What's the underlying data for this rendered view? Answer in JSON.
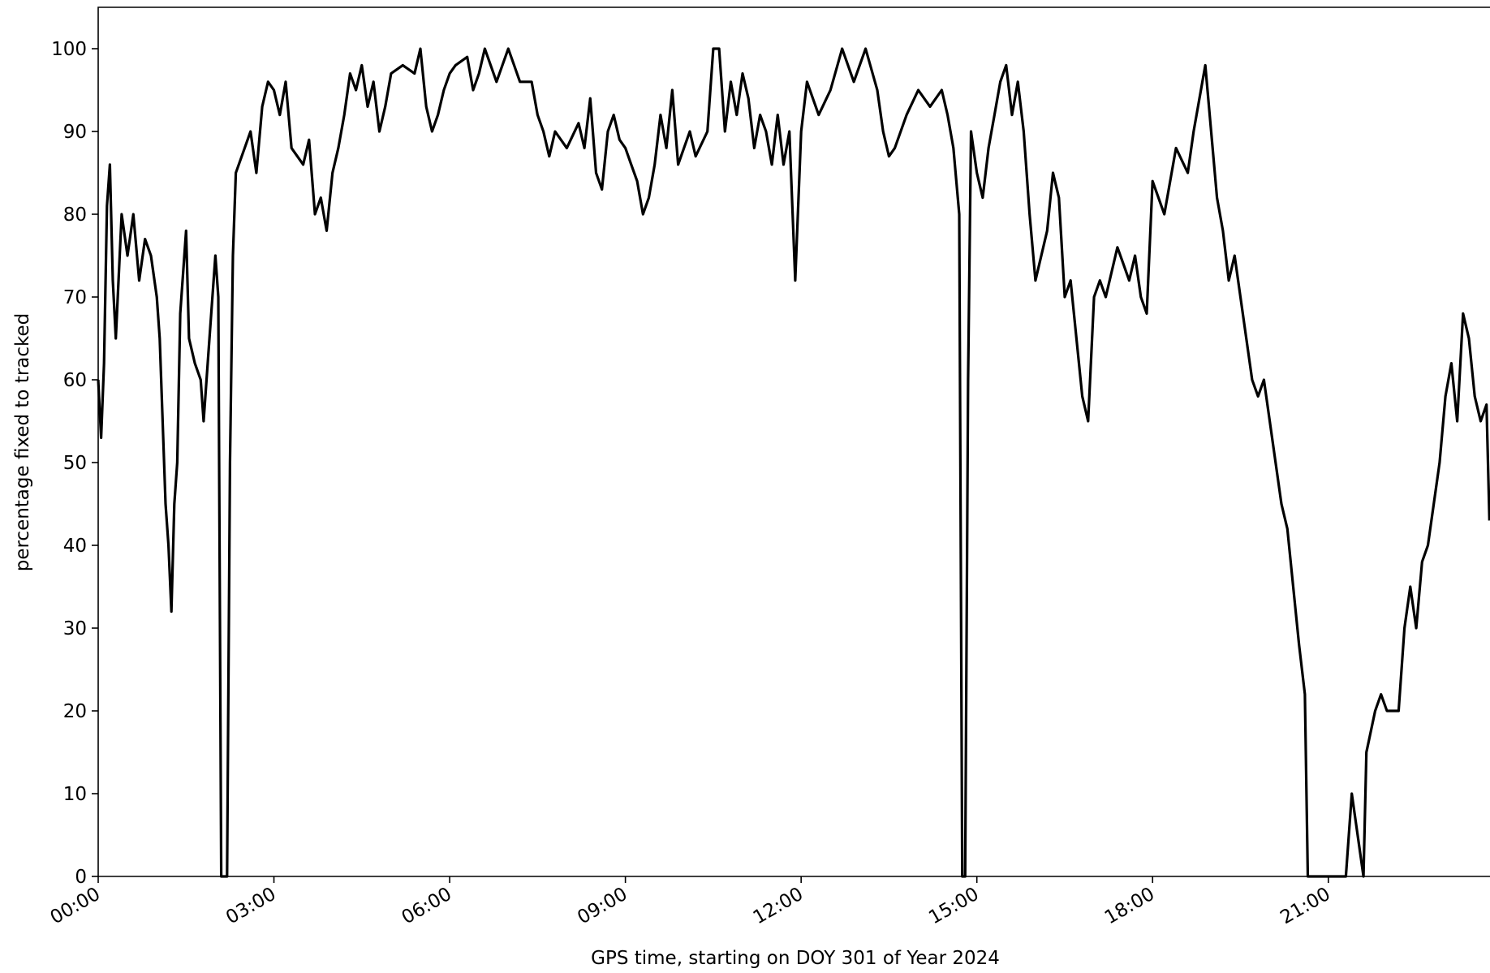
{
  "chart_data": {
    "type": "line",
    "xlabel": "GPS time, starting on DOY 301 of Year 2024",
    "ylabel": "percentage fixed to tracked",
    "xlim": [
      0,
      23.76
    ],
    "ylim": [
      0,
      105
    ],
    "xticks": [
      {
        "value": 0,
        "label": "00:00"
      },
      {
        "value": 3,
        "label": "03:00"
      },
      {
        "value": 6,
        "label": "06:00"
      },
      {
        "value": 9,
        "label": "09:00"
      },
      {
        "value": 12,
        "label": "12:00"
      },
      {
        "value": 15,
        "label": "15:00"
      },
      {
        "value": 18,
        "label": "18:00"
      },
      {
        "value": 21,
        "label": "21:00"
      }
    ],
    "yticks": [
      0,
      10,
      20,
      30,
      40,
      50,
      60,
      70,
      80,
      90,
      100
    ],
    "x": [
      0,
      0.05,
      0.1,
      0.15,
      0.2,
      0.25,
      0.3,
      0.4,
      0.5,
      0.6,
      0.7,
      0.8,
      0.9,
      1.0,
      1.05,
      1.1,
      1.15,
      1.2,
      1.25,
      1.3,
      1.35,
      1.4,
      1.5,
      1.55,
      1.65,
      1.75,
      1.8,
      1.9,
      2.0,
      2.05,
      2.1,
      2.2,
      2.25,
      2.3,
      2.35,
      2.5,
      2.6,
      2.7,
      2.8,
      2.9,
      3.0,
      3.1,
      3.2,
      3.3,
      3.5,
      3.6,
      3.7,
      3.8,
      3.9,
      4.0,
      4.1,
      4.2,
      4.3,
      4.4,
      4.5,
      4.6,
      4.7,
      4.8,
      4.9,
      5.0,
      5.2,
      5.4,
      5.5,
      5.6,
      5.7,
      5.8,
      5.9,
      6.0,
      6.1,
      6.3,
      6.4,
      6.5,
      6.6,
      6.8,
      7.0,
      7.2,
      7.4,
      7.5,
      7.6,
      7.7,
      7.8,
      8.0,
      8.2,
      8.3,
      8.4,
      8.5,
      8.6,
      8.7,
      8.8,
      8.9,
      9.0,
      9.1,
      9.2,
      9.3,
      9.4,
      9.5,
      9.6,
      9.7,
      9.8,
      9.9,
      10.0,
      10.1,
      10.2,
      10.4,
      10.5,
      10.6,
      10.7,
      10.8,
      10.9,
      11.0,
      11.1,
      11.2,
      11.3,
      11.4,
      11.5,
      11.6,
      11.7,
      11.8,
      11.9,
      12.0,
      12.1,
      12.3,
      12.5,
      12.7,
      12.9,
      13.1,
      13.3,
      13.4,
      13.5,
      13.6,
      13.8,
      14.0,
      14.2,
      14.4,
      14.5,
      14.6,
      14.7,
      14.75,
      14.8,
      14.85,
      14.9,
      15.0,
      15.1,
      15.2,
      15.3,
      15.4,
      15.5,
      15.6,
      15.7,
      15.8,
      15.9,
      16.0,
      16.1,
      16.2,
      16.3,
      16.4,
      16.5,
      16.6,
      16.7,
      16.8,
      16.9,
      17.0,
      17.1,
      17.2,
      17.4,
      17.5,
      17.6,
      17.7,
      17.8,
      17.9,
      18.0,
      18.2,
      18.4,
      18.6,
      18.7,
      18.8,
      18.9,
      19.0,
      19.1,
      19.2,
      19.3,
      19.4,
      19.5,
      19.6,
      19.7,
      19.8,
      19.9,
      20.0,
      20.1,
      20.2,
      20.3,
      20.4,
      20.5,
      20.6,
      20.65,
      21.3,
      21.4,
      21.5,
      21.6,
      21.65,
      21.8,
      21.9,
      22.0,
      22.2,
      22.3,
      22.4,
      22.5,
      22.6,
      22.7,
      22.8,
      22.9,
      23.0,
      23.1,
      23.2,
      23.3,
      23.4,
      23.5,
      23.6,
      23.7,
      23.75
    ],
    "series": [
      {
        "color": "#000000",
        "values": [
          60,
          53,
          62,
          81,
          86,
          72,
          65,
          80,
          75,
          80,
          72,
          77,
          75,
          70,
          65,
          55,
          45,
          40,
          32,
          45,
          50,
          68,
          78,
          65,
          62,
          60,
          55,
          65,
          75,
          70,
          0,
          0,
          50,
          75,
          85,
          88,
          90,
          85,
          93,
          96,
          95,
          92,
          96,
          88,
          86,
          89,
          80,
          82,
          78,
          85,
          88,
          92,
          97,
          95,
          98,
          93,
          96,
          90,
          93,
          97,
          98,
          97,
          100,
          93,
          90,
          92,
          95,
          97,
          98,
          99,
          95,
          97,
          100,
          96,
          100,
          96,
          96,
          92,
          90,
          87,
          90,
          88,
          91,
          88,
          94,
          85,
          83,
          90,
          92,
          89,
          88,
          86,
          84,
          80,
          82,
          86,
          92,
          88,
          95,
          86,
          88,
          90,
          87,
          90,
          100,
          100,
          90,
          96,
          92,
          97,
          94,
          88,
          92,
          90,
          86,
          92,
          86,
          90,
          72,
          90,
          96,
          92,
          95,
          100,
          96,
          100,
          95,
          90,
          87,
          88,
          92,
          95,
          93,
          95,
          92,
          88,
          80,
          0,
          0,
          60,
          90,
          85,
          82,
          88,
          92,
          96,
          98,
          92,
          96,
          90,
          80,
          72,
          75,
          78,
          85,
          82,
          70,
          72,
          65,
          58,
          55,
          70,
          72,
          70,
          76,
          74,
          72,
          75,
          70,
          68,
          84,
          80,
          88,
          85,
          90,
          94,
          98,
          90,
          82,
          78,
          72,
          75,
          70,
          65,
          60,
          58,
          60,
          55,
          50,
          45,
          42,
          35,
          28,
          22,
          0,
          0,
          10,
          5,
          0,
          15,
          20,
          22,
          20,
          20,
          30,
          35,
          30,
          38,
          40,
          45,
          50,
          58,
          62,
          55,
          68,
          65,
          58,
          55,
          57,
          43
        ]
      }
    ]
  }
}
